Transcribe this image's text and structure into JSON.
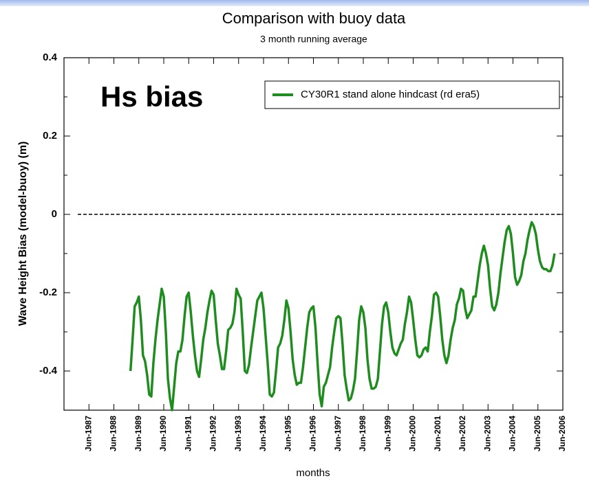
{
  "chart_data": {
    "type": "line",
    "title": "Comparison with buoy data",
    "subtitle": "3 month running average",
    "annotation": "Hs bias",
    "xlabel": "months",
    "ylabel": "Wave Height Bias (model-buoy) (m)",
    "ylim": [
      -0.5,
      0.4
    ],
    "yticks": [
      -0.4,
      -0.2,
      0,
      0.2,
      0.4
    ],
    "yminor": [
      -0.5,
      -0.3,
      -0.1,
      0.1,
      0.3
    ],
    "hline": 0,
    "xlim": [
      "1986-06",
      "2006-06"
    ],
    "xticks": [
      {
        "value": "1987-06",
        "label": "Jun-1987"
      },
      {
        "value": "1988-06",
        "label": "Jun-1988"
      },
      {
        "value": "1989-06",
        "label": "Jun-1989"
      },
      {
        "value": "1990-06",
        "label": "Jun-1990"
      },
      {
        "value": "1991-06",
        "label": "Jun-1991"
      },
      {
        "value": "1992-06",
        "label": "Jun-1992"
      },
      {
        "value": "1993-06",
        "label": "Jun-1993"
      },
      {
        "value": "1994-06",
        "label": "Jun-1994"
      },
      {
        "value": "1995-06",
        "label": "Jun-1995"
      },
      {
        "value": "1996-06",
        "label": "Jun-1996"
      },
      {
        "value": "1997-06",
        "label": "Jun-1997"
      },
      {
        "value": "1998-06",
        "label": "Jun-1998"
      },
      {
        "value": "1999-06",
        "label": "Jun-1999"
      },
      {
        "value": "2000-06",
        "label": "Jun-2000"
      },
      {
        "value": "2001-06",
        "label": "Jun-2001"
      },
      {
        "value": "2002-06",
        "label": "Jun-2002"
      },
      {
        "value": "2003-06",
        "label": "Jun-2003"
      },
      {
        "value": "2004-06",
        "label": "Jun-2004"
      },
      {
        "value": "2005-06",
        "label": "Jun-2005"
      },
      {
        "value": "2006-06",
        "label": "Jun-2006"
      }
    ],
    "x": [
      "1989-02",
      "1989-03",
      "1989-04",
      "1989-05",
      "1989-06",
      "1989-07",
      "1989-08",
      "1989-09",
      "1989-10",
      "1989-11",
      "1989-12",
      "1990-01",
      "1990-02",
      "1990-03",
      "1990-04",
      "1990-05",
      "1990-06",
      "1990-07",
      "1990-08",
      "1990-09",
      "1990-10",
      "1990-11",
      "1990-12",
      "1991-01",
      "1991-02",
      "1991-03",
      "1991-04",
      "1991-05",
      "1991-06",
      "1991-07",
      "1991-08",
      "1991-09",
      "1991-10",
      "1991-11",
      "1991-12",
      "1992-01",
      "1992-02",
      "1992-03",
      "1992-04",
      "1992-05",
      "1992-06",
      "1992-07",
      "1992-08",
      "1992-09",
      "1992-10",
      "1992-11",
      "1992-12",
      "1993-01",
      "1993-02",
      "1993-03",
      "1993-04",
      "1993-05",
      "1993-06",
      "1993-07",
      "1993-08",
      "1993-09",
      "1993-10",
      "1993-11",
      "1993-12",
      "1994-01",
      "1994-02",
      "1994-03",
      "1994-04",
      "1994-05",
      "1994-06",
      "1994-07",
      "1994-08",
      "1994-09",
      "1994-10",
      "1994-11",
      "1994-12",
      "1995-01",
      "1995-02",
      "1995-03",
      "1995-04",
      "1995-05",
      "1995-06",
      "1995-07",
      "1995-08",
      "1995-09",
      "1995-10",
      "1995-11",
      "1995-12",
      "1996-01",
      "1996-02",
      "1996-03",
      "1996-04",
      "1996-05",
      "1996-06",
      "1996-07",
      "1996-08",
      "1996-09",
      "1996-10",
      "1996-11",
      "1996-12",
      "1997-01",
      "1997-02",
      "1997-03",
      "1997-04",
      "1997-05",
      "1997-06",
      "1997-07",
      "1997-08",
      "1997-09",
      "1997-10",
      "1997-11",
      "1997-12",
      "1998-01",
      "1998-02",
      "1998-03",
      "1998-04",
      "1998-05",
      "1998-06",
      "1998-07",
      "1998-08",
      "1998-09",
      "1998-10",
      "1998-11",
      "1998-12",
      "1999-01",
      "1999-02",
      "1999-03",
      "1999-04",
      "1999-05",
      "1999-06",
      "1999-07",
      "1999-08",
      "1999-09",
      "1999-10",
      "1999-11",
      "1999-12",
      "2000-01",
      "2000-02",
      "2000-03",
      "2000-04",
      "2000-05",
      "2000-06",
      "2000-07",
      "2000-08",
      "2000-09",
      "2000-10",
      "2000-11",
      "2000-12",
      "2001-01",
      "2001-02",
      "2001-03",
      "2001-04",
      "2001-05",
      "2001-06",
      "2001-07",
      "2001-08",
      "2001-09",
      "2001-10",
      "2001-11",
      "2001-12",
      "2002-01",
      "2002-02",
      "2002-03",
      "2002-04",
      "2002-05",
      "2002-06",
      "2002-07",
      "2002-08",
      "2002-09",
      "2002-10",
      "2002-11",
      "2002-12",
      "2003-01",
      "2003-02",
      "2003-03",
      "2003-04",
      "2003-05",
      "2003-06",
      "2003-07",
      "2003-08",
      "2003-09",
      "2003-10",
      "2003-11",
      "2003-12",
      "2004-01",
      "2004-02",
      "2004-03",
      "2004-04",
      "2004-05",
      "2004-06",
      "2004-07",
      "2004-08",
      "2004-09",
      "2004-10",
      "2004-11",
      "2004-12",
      "2005-01",
      "2005-02",
      "2005-03",
      "2005-04",
      "2005-05",
      "2005-06",
      "2005-07",
      "2005-08",
      "2005-09",
      "2005-10",
      "2005-11",
      "2005-12",
      "2006-01",
      "2006-02"
    ],
    "series": [
      {
        "name": "CY30R1 stand alone hindcast (rd era5)",
        "color": "#1e8c1e",
        "values": [
          -0.4,
          -0.32,
          -0.235,
          -0.225,
          -0.21,
          -0.27,
          -0.36,
          -0.375,
          -0.41,
          -0.46,
          -0.465,
          -0.38,
          -0.32,
          -0.27,
          -0.23,
          -0.19,
          -0.21,
          -0.3,
          -0.42,
          -0.47,
          -0.5,
          -0.44,
          -0.38,
          -0.35,
          -0.35,
          -0.32,
          -0.26,
          -0.21,
          -0.2,
          -0.25,
          -0.31,
          -0.36,
          -0.4,
          -0.415,
          -0.37,
          -0.32,
          -0.29,
          -0.25,
          -0.22,
          -0.195,
          -0.205,
          -0.27,
          -0.33,
          -0.36,
          -0.395,
          -0.395,
          -0.35,
          -0.295,
          -0.29,
          -0.28,
          -0.25,
          -0.19,
          -0.205,
          -0.215,
          -0.3,
          -0.4,
          -0.405,
          -0.385,
          -0.34,
          -0.3,
          -0.26,
          -0.22,
          -0.21,
          -0.2,
          -0.24,
          -0.31,
          -0.38,
          -0.46,
          -0.465,
          -0.455,
          -0.4,
          -0.34,
          -0.33,
          -0.31,
          -0.27,
          -0.22,
          -0.24,
          -0.3,
          -0.37,
          -0.41,
          -0.435,
          -0.43,
          -0.43,
          -0.39,
          -0.34,
          -0.29,
          -0.25,
          -0.24,
          -0.235,
          -0.29,
          -0.38,
          -0.46,
          -0.49,
          -0.44,
          -0.43,
          -0.41,
          -0.39,
          -0.34,
          -0.3,
          -0.265,
          -0.26,
          -0.265,
          -0.33,
          -0.41,
          -0.445,
          -0.475,
          -0.47,
          -0.45,
          -0.42,
          -0.35,
          -0.27,
          -0.235,
          -0.25,
          -0.29,
          -0.37,
          -0.42,
          -0.445,
          -0.445,
          -0.44,
          -0.42,
          -0.35,
          -0.28,
          -0.235,
          -0.225,
          -0.25,
          -0.3,
          -0.34,
          -0.355,
          -0.36,
          -0.345,
          -0.33,
          -0.32,
          -0.28,
          -0.25,
          -0.21,
          -0.225,
          -0.27,
          -0.32,
          -0.36,
          -0.365,
          -0.36,
          -0.345,
          -0.34,
          -0.35,
          -0.3,
          -0.26,
          -0.205,
          -0.2,
          -0.21,
          -0.26,
          -0.32,
          -0.36,
          -0.38,
          -0.36,
          -0.32,
          -0.29,
          -0.27,
          -0.23,
          -0.215,
          -0.19,
          -0.195,
          -0.24,
          -0.265,
          -0.255,
          -0.245,
          -0.21,
          -0.21,
          -0.17,
          -0.13,
          -0.1,
          -0.08,
          -0.1,
          -0.13,
          -0.19,
          -0.235,
          -0.245,
          -0.23,
          -0.2,
          -0.15,
          -0.11,
          -0.07,
          -0.04,
          -0.03,
          -0.05,
          -0.1,
          -0.16,
          -0.18,
          -0.17,
          -0.155,
          -0.12,
          -0.1,
          -0.065,
          -0.04,
          -0.02,
          -0.03,
          -0.05,
          -0.09,
          -0.12,
          -0.135,
          -0.14,
          -0.14,
          -0.145,
          -0.145,
          -0.13,
          -0.1
        ]
      }
    ]
  }
}
